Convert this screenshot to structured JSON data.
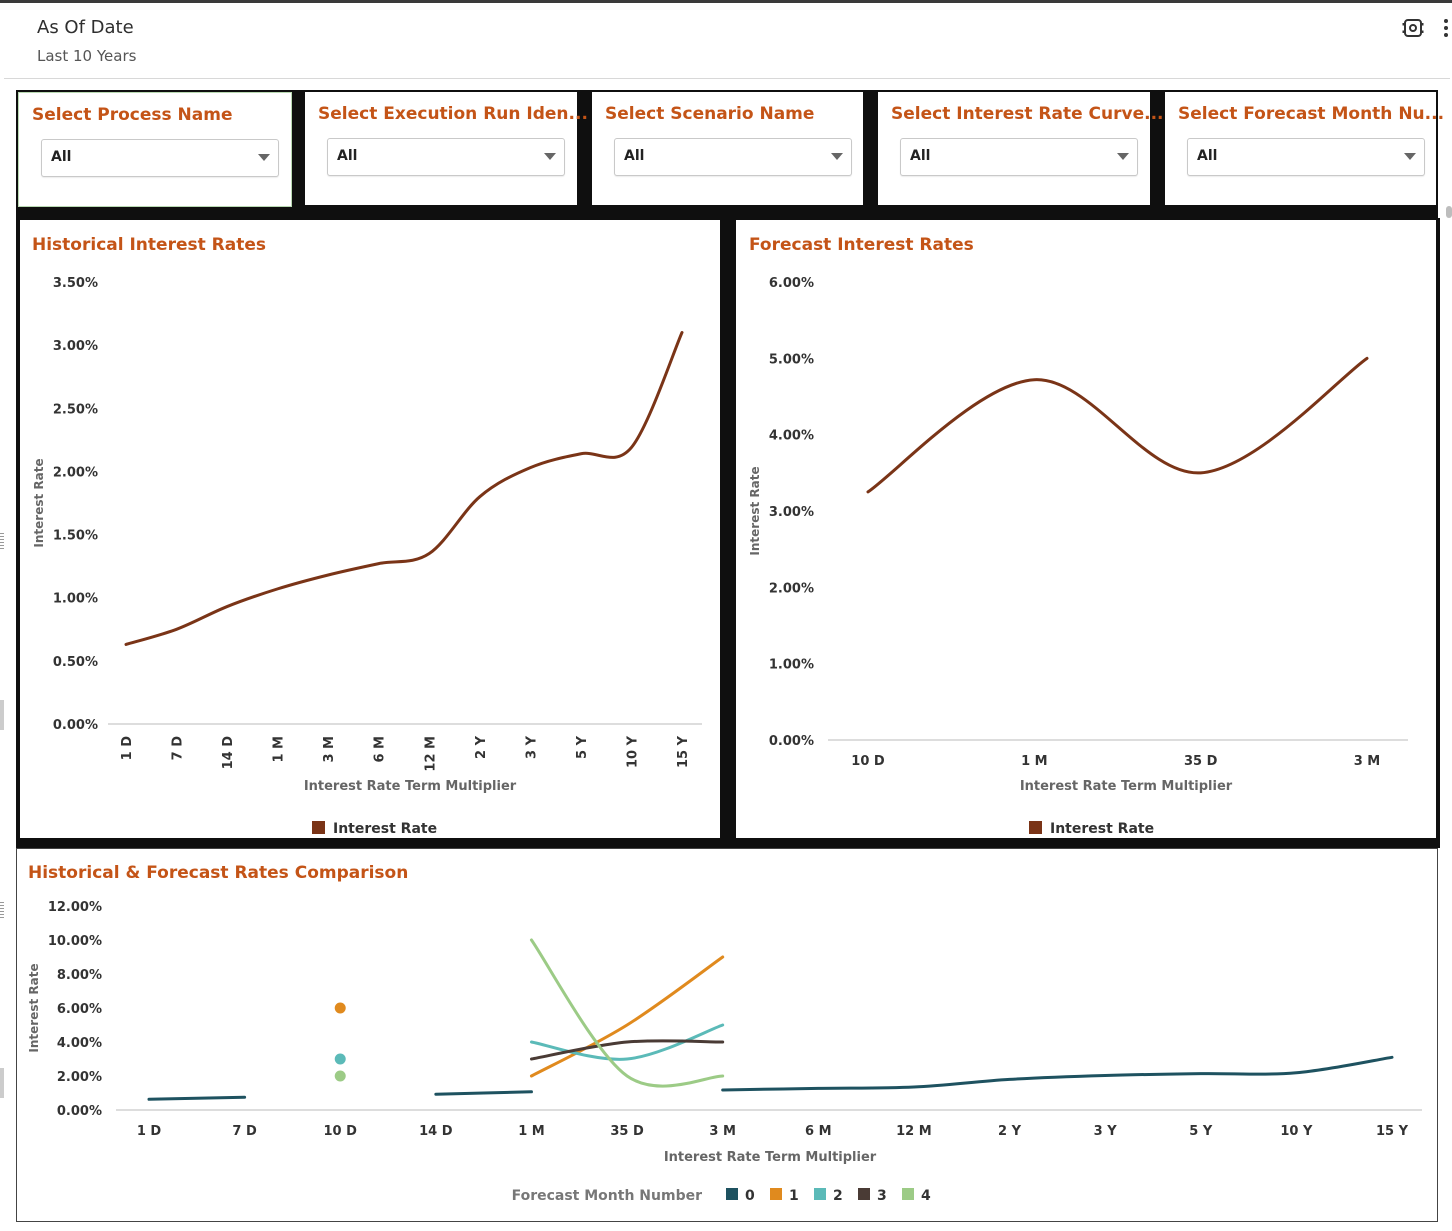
{
  "header": {
    "title": "As Of Date",
    "subtitle": "Last 10 Years",
    "settings_icon": "settings-gear-icon",
    "menu_icon": "more-vertical-icon"
  },
  "filters": [
    {
      "label": "Select Process Name",
      "value": "All"
    },
    {
      "label": "Select Execution Run Iden...",
      "value": "All"
    },
    {
      "label": "Select Scenario Name",
      "value": "All"
    },
    {
      "label": "Select Interest Rate Curve...",
      "value": "All"
    },
    {
      "label": "Select Forecast Month Nu...",
      "value": "All"
    }
  ],
  "colors": {
    "accent": "#c45417",
    "series_main": "#7a3417",
    "forecast_0": "#1e5260",
    "forecast_1": "#e08a1e",
    "forecast_2": "#5bbab8",
    "forecast_3": "#4a3b35",
    "forecast_4": "#9ccb86"
  },
  "chart_data": [
    {
      "type": "line",
      "title": "Historical Interest Rates",
      "xlabel": "Interest Rate Term Multiplier",
      "ylabel": "Interest Rate",
      "categories": [
        "1 D",
        "7 D",
        "14 D",
        "1 M",
        "3 M",
        "6 M",
        "12 M",
        "2 Y",
        "3 Y",
        "5 Y",
        "10 Y",
        "15 Y"
      ],
      "y_ticks": [
        "0.00%",
        "0.50%",
        "1.00%",
        "1.50%",
        "2.00%",
        "2.50%",
        "3.00%",
        "3.50%"
      ],
      "ylim": [
        0,
        3.5
      ],
      "series": [
        {
          "name": "Interest Rate",
          "values": [
            0.63,
            0.75,
            0.93,
            1.07,
            1.18,
            1.27,
            1.35,
            1.8,
            2.03,
            2.14,
            2.19,
            3.1
          ]
        }
      ],
      "legend": "bottom-center",
      "grid": false
    },
    {
      "type": "line",
      "title": "Forecast Interest Rates",
      "xlabel": "Interest Rate Term Multiplier",
      "ylabel": "Interest Rate",
      "categories": [
        "10 D",
        "1 M",
        "35 D",
        "3 M"
      ],
      "y_ticks": [
        "0.00%",
        "1.00%",
        "2.00%",
        "3.00%",
        "4.00%",
        "5.00%",
        "6.00%"
      ],
      "ylim": [
        0,
        6
      ],
      "series": [
        {
          "name": "Interest Rate",
          "values": [
            3.25,
            4.72,
            3.5,
            5.0
          ]
        }
      ],
      "legend": "bottom-center",
      "grid": false
    },
    {
      "type": "line",
      "title": "Historical & Forecast Rates Comparison",
      "xlabel": "Interest Rate Term Multiplier",
      "ylabel": "Interest Rate",
      "categories": [
        "1 D",
        "7 D",
        "10 D",
        "14 D",
        "1 M",
        "35 D",
        "3 M",
        "6 M",
        "12 M",
        "2 Y",
        "3 Y",
        "5 Y",
        "10 Y",
        "15 Y"
      ],
      "y_ticks": [
        "0.00%",
        "2.00%",
        "4.00%",
        "6.00%",
        "8.00%",
        "10.00%",
        "12.00%"
      ],
      "ylim": [
        0,
        12
      ],
      "legend_title": "Forecast Month Number",
      "series": [
        {
          "name": "0",
          "values": [
            0.63,
            0.75,
            null,
            0.93,
            1.07,
            null,
            1.18,
            1.27,
            1.35,
            1.8,
            2.03,
            2.14,
            2.19,
            3.1
          ]
        },
        {
          "name": "1",
          "values": [
            null,
            null,
            6.0,
            null,
            2.0,
            5.0,
            9.0,
            null,
            null,
            null,
            null,
            null,
            null,
            null
          ]
        },
        {
          "name": "2",
          "values": [
            null,
            null,
            3.0,
            null,
            4.0,
            3.0,
            5.0,
            null,
            null,
            null,
            null,
            null,
            null,
            null
          ]
        },
        {
          "name": "3",
          "values": [
            null,
            null,
            null,
            null,
            3.0,
            4.0,
            4.0,
            null,
            null,
            null,
            null,
            null,
            null,
            null
          ]
        },
        {
          "name": "4",
          "values": [
            null,
            null,
            2.0,
            null,
            10.0,
            2.0,
            2.0,
            null,
            null,
            null,
            null,
            null,
            null,
            null
          ]
        }
      ],
      "legend": "bottom-center",
      "grid": false
    }
  ]
}
